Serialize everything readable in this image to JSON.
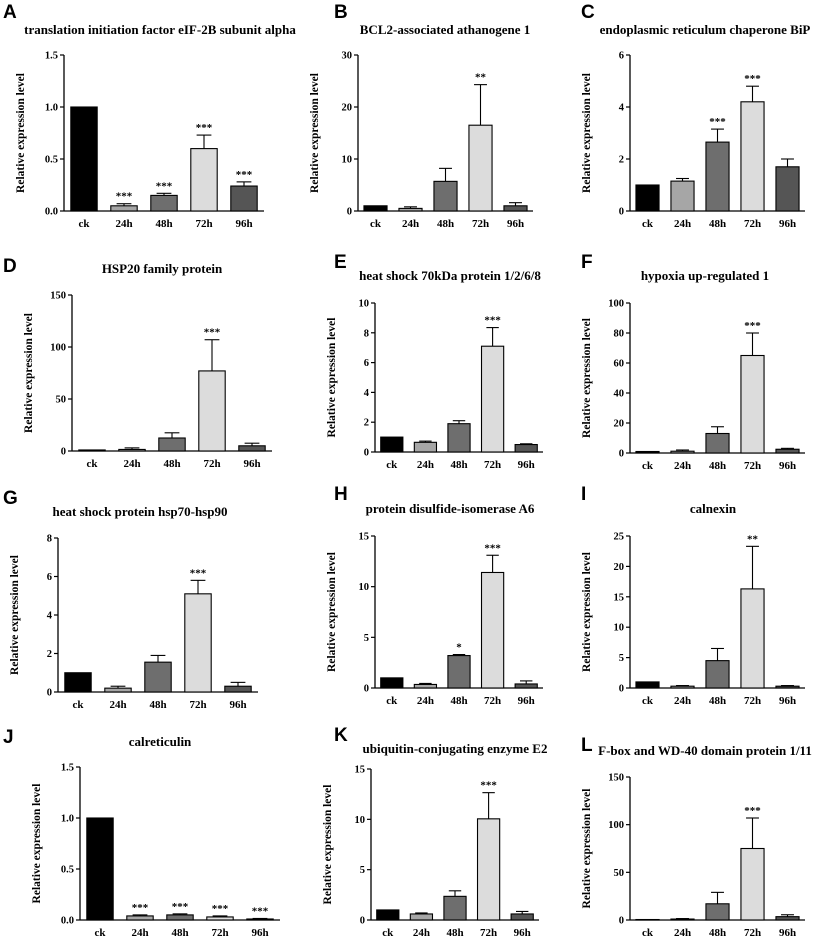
{
  "styles": {
    "bar_colors": [
      "#000000",
      "#a6a6a6",
      "#6e6e6e",
      "#dcdcdc",
      "#555555"
    ],
    "bar_stroke": "#000000"
  },
  "chart_data": [
    {
      "letter": "A",
      "type": "bar",
      "title": "translation initiation factor eIF-2B subunit alpha",
      "ylabel": "Relative expression level",
      "categories": [
        "ck",
        "24h",
        "48h",
        "72h",
        "96h"
      ],
      "values": [
        1.0,
        0.05,
        0.15,
        0.6,
        0.24
      ],
      "errors": [
        0,
        0.02,
        0.02,
        0.13,
        0.04
      ],
      "sig": [
        "",
        "***",
        "***",
        "***",
        "***"
      ],
      "ylim": [
        0,
        1.5
      ],
      "yticks": [
        "0.0",
        "0.5",
        "1.0",
        "1.5"
      ]
    },
    {
      "letter": "B",
      "type": "bar",
      "title": "BCL2-associated athanogene 1",
      "ylabel": "Relative expression level",
      "categories": [
        "ck",
        "24h",
        "48h",
        "72h",
        "96h"
      ],
      "values": [
        1.0,
        0.5,
        5.7,
        16.5,
        1.0
      ],
      "errors": [
        0,
        0.3,
        2.5,
        7.8,
        0.6
      ],
      "sig": [
        "",
        "",
        "",
        "**",
        ""
      ],
      "ylim": [
        0,
        30
      ],
      "yticks": [
        "0",
        "10",
        "20",
        "30"
      ]
    },
    {
      "letter": "C",
      "type": "bar",
      "title": "endoplasmic reticulum chaperone BiP",
      "ylabel": "Relative expression level",
      "categories": [
        "ck",
        "24h",
        "48h",
        "72h",
        "96h"
      ],
      "values": [
        1.0,
        1.15,
        2.65,
        4.2,
        1.7
      ],
      "errors": [
        0,
        0.1,
        0.5,
        0.6,
        0.3
      ],
      "sig": [
        "",
        "",
        "***",
        "***",
        ""
      ],
      "ylim": [
        0,
        6
      ],
      "yticks": [
        "0",
        "2",
        "4",
        "6"
      ]
    },
    {
      "letter": "D",
      "type": "bar",
      "title": "HSP20 family protein",
      "ylabel": "Relative expression level",
      "categories": [
        "ck",
        "24h",
        "48h",
        "72h",
        "96h"
      ],
      "values": [
        1.0,
        1.5,
        12.5,
        77,
        5
      ],
      "errors": [
        0,
        1.5,
        5,
        30,
        2.5
      ],
      "sig": [
        "",
        "",
        "",
        "***",
        ""
      ],
      "ylim": [
        0,
        150
      ],
      "yticks": [
        "0",
        "50",
        "100",
        "150"
      ]
    },
    {
      "letter": "E",
      "type": "bar",
      "title": "heat shock 70kDa protein 1/2/6/8",
      "ylabel": "Relative expression level",
      "categories": [
        "ck",
        "24h",
        "48h",
        "72h",
        "96h"
      ],
      "values": [
        1.0,
        0.65,
        1.9,
        7.1,
        0.5
      ],
      "errors": [
        0,
        0.08,
        0.2,
        1.25,
        0.05
      ],
      "sig": [
        "",
        "",
        "",
        "***",
        ""
      ],
      "ylim": [
        0,
        10
      ],
      "yticks": [
        "0",
        "2",
        "4",
        "6",
        "8",
        "10"
      ]
    },
    {
      "letter": "F",
      "type": "bar",
      "title": "hypoxia up-regulated 1",
      "ylabel": "Relative expression level",
      "categories": [
        "ck",
        "24h",
        "48h",
        "72h",
        "96h"
      ],
      "values": [
        1.0,
        1.2,
        13,
        65,
        2.5
      ],
      "errors": [
        0,
        0.8,
        4.5,
        15,
        0.6
      ],
      "sig": [
        "",
        "",
        "",
        "***",
        ""
      ],
      "ylim": [
        0,
        100
      ],
      "yticks": [
        "0",
        "20",
        "40",
        "60",
        "80",
        "100"
      ]
    },
    {
      "letter": "G",
      "type": "bar",
      "title": "heat shock protein hsp70-hsp90",
      "ylabel": "Relative expression level",
      "categories": [
        "ck",
        "24h",
        "48h",
        "72h",
        "96h"
      ],
      "values": [
        1.0,
        0.2,
        1.55,
        5.1,
        0.3
      ],
      "errors": [
        0,
        0.1,
        0.35,
        0.7,
        0.2
      ],
      "sig": [
        "",
        "",
        "",
        "***",
        ""
      ],
      "ylim": [
        0,
        8
      ],
      "yticks": [
        "0",
        "2",
        "4",
        "6",
        "8"
      ]
    },
    {
      "letter": "H",
      "type": "bar",
      "title": "protein disulfide-isomerase A6",
      "ylabel": "Relative expression level",
      "categories": [
        "ck",
        "24h",
        "48h",
        "72h",
        "96h"
      ],
      "values": [
        1.0,
        0.35,
        3.2,
        11.4,
        0.4
      ],
      "errors": [
        0,
        0.1,
        0.1,
        1.7,
        0.3
      ],
      "sig": [
        "",
        "",
        "*",
        "***",
        ""
      ],
      "ylim": [
        0,
        15
      ],
      "yticks": [
        "0",
        "5",
        "10",
        "15"
      ]
    },
    {
      "letter": "I",
      "type": "bar",
      "title": "calnexin",
      "ylabel": "Relative expression level",
      "categories": [
        "ck",
        "24h",
        "48h",
        "72h",
        "96h"
      ],
      "values": [
        1.0,
        0.3,
        4.5,
        16.3,
        0.3
      ],
      "errors": [
        0,
        0.1,
        2.0,
        7.0,
        0.1
      ],
      "sig": [
        "",
        "",
        "",
        "**",
        ""
      ],
      "ylim": [
        0,
        25
      ],
      "yticks": [
        "0",
        "5",
        "10",
        "15",
        "20",
        "25"
      ]
    },
    {
      "letter": "J",
      "type": "bar",
      "title": "calreticulin",
      "ylabel": "Relative expression level",
      "categories": [
        "ck",
        "24h",
        "48h",
        "72h",
        "96h"
      ],
      "values": [
        1.0,
        0.04,
        0.05,
        0.03,
        0.01
      ],
      "errors": [
        0,
        0.01,
        0.01,
        0.01,
        0.005
      ],
      "sig": [
        "",
        "***",
        "***",
        "***",
        "***"
      ],
      "ylim": [
        0,
        1.5
      ],
      "yticks": [
        "0.0",
        "0.5",
        "1.0",
        "1.5"
      ]
    },
    {
      "letter": "K",
      "type": "bar",
      "title": "ubiquitin-conjugating enzyme E2",
      "ylabel": "Relative expression level",
      "categories": [
        "ck",
        "24h",
        "48h",
        "72h",
        "96h"
      ],
      "values": [
        1.0,
        0.6,
        2.35,
        10.05,
        0.6
      ],
      "errors": [
        0,
        0.1,
        0.55,
        2.6,
        0.25
      ],
      "sig": [
        "",
        "",
        "",
        "***",
        ""
      ],
      "ylim": [
        0,
        15
      ],
      "yticks": [
        "0",
        "5",
        "10",
        "15"
      ]
    },
    {
      "letter": "L",
      "type": "bar",
      "title": "F-box and WD-40 domain protein 1/11",
      "ylabel": "Relative expression level",
      "categories": [
        "ck",
        "24h",
        "48h",
        "72h",
        "96h"
      ],
      "values": [
        0.5,
        1.0,
        17,
        75,
        3.5
      ],
      "errors": [
        0,
        0.5,
        12,
        32,
        2
      ],
      "sig": [
        "",
        "",
        "",
        "***",
        ""
      ],
      "ylim": [
        0,
        150
      ],
      "yticks": [
        "0",
        "50",
        "100",
        "150"
      ]
    }
  ]
}
